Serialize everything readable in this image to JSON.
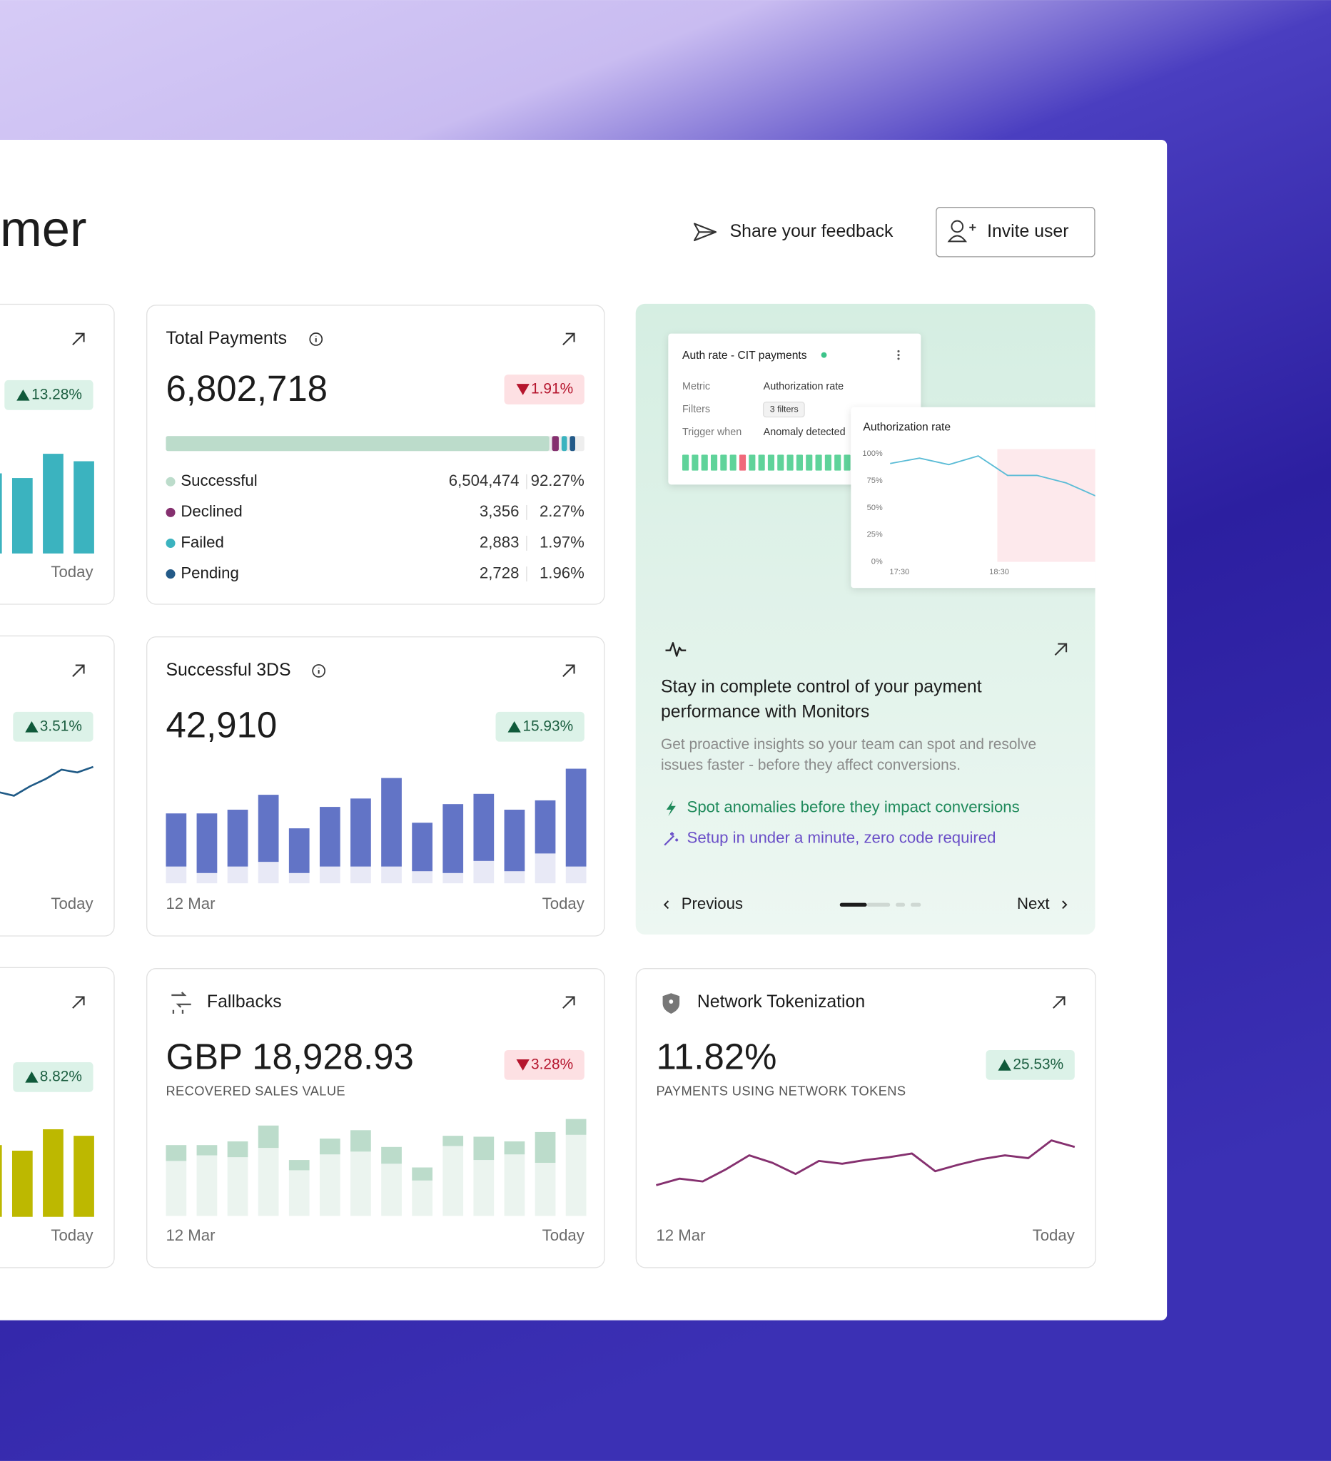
{
  "header": {
    "title_fragment": "mer",
    "feedback": "Share your feedback",
    "invite": "Invite user"
  },
  "left_cards": [
    {
      "change": "13.28%",
      "direction": "up",
      "end_label": "Today",
      "color": "#3bb3bf",
      "bars": [
        86,
        81,
        107,
        99
      ]
    },
    {
      "change": "3.51%",
      "direction": "up",
      "end_label": "Today",
      "color": "#1f5a86",
      "line": [
        50,
        46,
        56,
        64,
        74,
        71,
        77
      ]
    },
    {
      "change": "8.82%",
      "direction": "up",
      "end_label": "Today",
      "color": "#bdb800",
      "bars": [
        77,
        71,
        94,
        87
      ]
    }
  ],
  "total_payments": {
    "title": "Total Payments",
    "value": "6,802,718",
    "change": "1.91%",
    "direction": "down",
    "names": [
      "Successful",
      "Declined",
      "Failed",
      "Pending"
    ],
    "colors": [
      "#bcdccb",
      "#85306f",
      "#3bb3bf",
      "#235a88"
    ],
    "counts": [
      {
        "value": 6504474,
        "label": "6,504,474"
      },
      {
        "value": 3356,
        "label": "3,356"
      },
      {
        "value": 2883,
        "label": "2,883"
      },
      {
        "value": 2728,
        "label": "2,728"
      }
    ],
    "values": [
      92.27,
      2.27,
      1.97,
      1.96
    ],
    "value_labels": [
      "92.27%",
      "2.27%",
      "1.97%",
      "1.96%"
    ]
  },
  "successful_3ds": {
    "title": "Successful 3DS",
    "value": "42,910",
    "change": "15.93%",
    "direction": "up",
    "start_label": "12 Mar",
    "end_label": "Today",
    "ylim": [
      0,
      123
    ],
    "base_color": "#e8e9f6",
    "top_color": "#6274c6",
    "base": [
      18,
      11,
      18,
      23,
      11,
      18,
      18,
      18,
      13,
      11,
      24,
      13,
      32,
      18
    ],
    "top": [
      57,
      64,
      61,
      72,
      48,
      64,
      73,
      95,
      52,
      74,
      72,
      66,
      57,
      105
    ]
  },
  "promo": {
    "preview": {
      "monitor_title": "Auth rate - CIT payments",
      "fields": [
        {
          "label": "Metric",
          "value": "Authorization rate"
        },
        {
          "label": "Filters",
          "value": "3 filters"
        },
        {
          "label": "Trigger when",
          "value": "Anomaly detected"
        }
      ],
      "chart": {
        "title": "Authorization rate",
        "ylim": [
          0,
          100
        ],
        "color": "#5bbcd6",
        "yticks": [
          {
            "value": 100,
            "label": "100%"
          },
          {
            "value": 75,
            "label": "75%"
          },
          {
            "value": 50,
            "label": "50%"
          },
          {
            "value": 25,
            "label": "25%"
          },
          {
            "value": 0,
            "label": "0%"
          }
        ],
        "xlabels": [
          "17:30",
          "18:30"
        ],
        "values": [
          91,
          96,
          90,
          98,
          80,
          80,
          73,
          61
        ]
      }
    },
    "heading": "Stay in complete control of your payment performance with Monitors",
    "body": "Get proactive insights so your team can spot and resolve issues faster - before they affect conversions.",
    "bullets": [
      "Spot anomalies before they impact conversions",
      "Setup in under a minute, zero code required"
    ],
    "previous": "Previous",
    "next": "Next"
  },
  "fallbacks": {
    "title": "Fallbacks",
    "value": "GBP 18,928.93",
    "caption": "RECOVERED SALES VALUE",
    "change": "3.28%",
    "direction": "down",
    "start_label": "12 Mar",
    "end_label": "Today",
    "ylim": [
      0,
      105
    ],
    "base_color": "#ebf4ef",
    "top_color": "#bcdccb",
    "base": [
      59,
      65,
      63,
      73,
      49,
      66,
      69,
      56,
      38,
      75,
      60,
      66,
      57,
      87
    ],
    "top": [
      17,
      11,
      17,
      24,
      11,
      17,
      23,
      18,
      14,
      11,
      25,
      14,
      33,
      17
    ]
  },
  "network_tokenization": {
    "title": "Network Tokenization",
    "value": "11.82%",
    "caption": "PAYMENTS USING NETWORK TOKENS",
    "change": "25.53%",
    "direction": "up",
    "start_label": "12 Mar",
    "end_label": "Today",
    "ylim": [
      0,
      80
    ],
    "color": "#85306f",
    "values": [
      18,
      25,
      22,
      35,
      50,
      42,
      30,
      44,
      41,
      45,
      48,
      52,
      33,
      40,
      46,
      50,
      47,
      66,
      59
    ]
  }
}
